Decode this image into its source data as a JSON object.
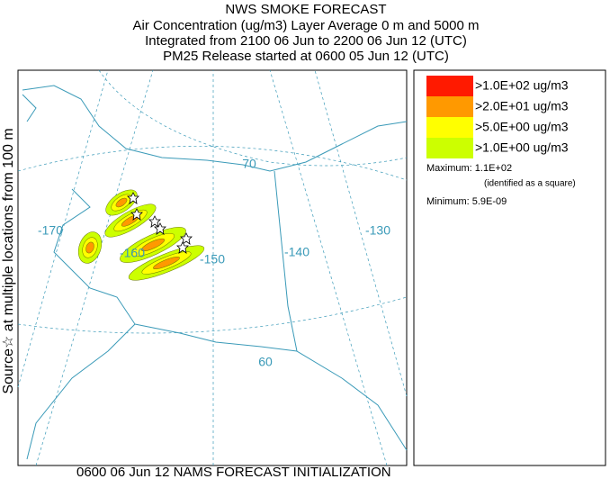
{
  "header": {
    "lines": [
      "NWS SMOKE FORECAST",
      "Air Concentration (ug/m3) Layer Average    0 m and  5000 m",
      "Integrated from 2100 06 Jun to 2200 06 Jun 12 (UTC)",
      "PM25 Release started at 0600 05 Jun 12 (UTC)"
    ]
  },
  "side_label": "Source☆   at multiple locations   from   100 m",
  "footer": "0600 06 Jun 12 NAMS FORECAST INITIALIZATION",
  "map": {
    "graticule_labels": [
      "-170",
      "-160",
      "-150",
      "-140",
      "-130",
      "70",
      "60"
    ]
  },
  "legend": {
    "items": [
      {
        "label": ">1.0E+02 ug/m3",
        "color": "#ff1a00"
      },
      {
        "label": ">2.0E+01 ug/m3",
        "color": "#ff9900"
      },
      {
        "label": ">5.0E+00 ug/m3",
        "color": "#ffff00"
      },
      {
        "label": ">1.0E+00 ug/m3",
        "color": "#ccff00"
      }
    ],
    "maximum": "Maximum: 1.1E+02",
    "maximum_note": "(identified as a square)",
    "minimum": "Minimum: 5.9E-09"
  }
}
